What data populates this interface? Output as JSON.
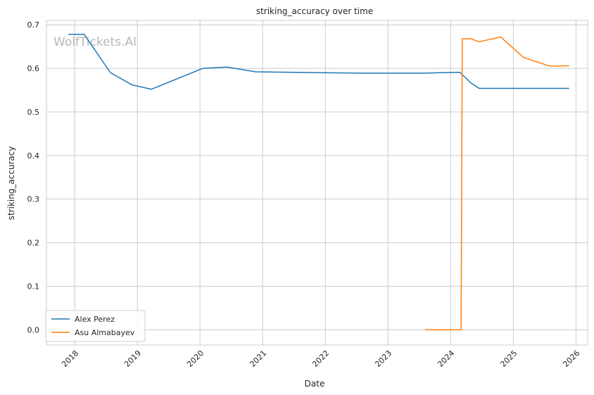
{
  "chart_data": {
    "type": "line",
    "title": "striking_accuracy over time",
    "xlabel": "Date",
    "ylabel": "striking_accuracy",
    "watermark": "WolfTickets.AI",
    "x_axis": "date",
    "xlim": [
      "2017-07-20",
      "2026-03-10"
    ],
    "ylim": [
      -0.035,
      0.71
    ],
    "xticks": [
      {
        "date": "2018-01-01",
        "label": "2018"
      },
      {
        "date": "2019-01-01",
        "label": "2019"
      },
      {
        "date": "2020-01-01",
        "label": "2020"
      },
      {
        "date": "2021-01-01",
        "label": "2021"
      },
      {
        "date": "2022-01-01",
        "label": "2022"
      },
      {
        "date": "2023-01-01",
        "label": "2023"
      },
      {
        "date": "2024-01-01",
        "label": "2024"
      },
      {
        "date": "2025-01-01",
        "label": "2025"
      },
      {
        "date": "2026-01-01",
        "label": "2026"
      }
    ],
    "yticks": [
      {
        "value": 0.0,
        "label": "0.0"
      },
      {
        "value": 0.1,
        "label": "0.1"
      },
      {
        "value": 0.2,
        "label": "0.2"
      },
      {
        "value": 0.3,
        "label": "0.3"
      },
      {
        "value": 0.4,
        "label": "0.4"
      },
      {
        "value": 0.5,
        "label": "0.5"
      },
      {
        "value": 0.6,
        "label": "0.6"
      },
      {
        "value": 0.7,
        "label": "0.7"
      }
    ],
    "grid": true,
    "legend_position": "lower-left",
    "series": [
      {
        "name": "Alex Perez",
        "color": "#1f77b4",
        "points": [
          {
            "x": "2017-11-25",
            "y": 0.678
          },
          {
            "x": "2018-02-25",
            "y": 0.678
          },
          {
            "x": "2018-07-28",
            "y": 0.59
          },
          {
            "x": "2018-12-01",
            "y": 0.562
          },
          {
            "x": "2019-03-23",
            "y": 0.552
          },
          {
            "x": "2020-01-18",
            "y": 0.6
          },
          {
            "x": "2020-06-06",
            "y": 0.603
          },
          {
            "x": "2020-11-21",
            "y": 0.592
          },
          {
            "x": "2021-12-11",
            "y": 0.59
          },
          {
            "x": "2022-07-30",
            "y": 0.589
          },
          {
            "x": "2023-07-29",
            "y": 0.589
          },
          {
            "x": "2024-02-24",
            "y": 0.591
          },
          {
            "x": "2024-04-27",
            "y": 0.567
          },
          {
            "x": "2024-06-15",
            "y": 0.554
          },
          {
            "x": "2025-11-22",
            "y": 0.554
          }
        ]
      },
      {
        "name": "Asu Almabayev",
        "color": "#ff7f0e",
        "points": [
          {
            "x": "2023-08-05",
            "y": 0.0
          },
          {
            "x": "2024-03-02",
            "y": 0.0
          },
          {
            "x": "2024-03-09",
            "y": 0.668
          },
          {
            "x": "2024-04-27",
            "y": 0.668
          },
          {
            "x": "2024-06-15",
            "y": 0.661
          },
          {
            "x": "2024-10-19",
            "y": 0.672
          },
          {
            "x": "2025-03-01",
            "y": 0.625
          },
          {
            "x": "2025-08-02",
            "y": 0.605
          },
          {
            "x": "2025-11-22",
            "y": 0.606
          }
        ]
      }
    ]
  }
}
